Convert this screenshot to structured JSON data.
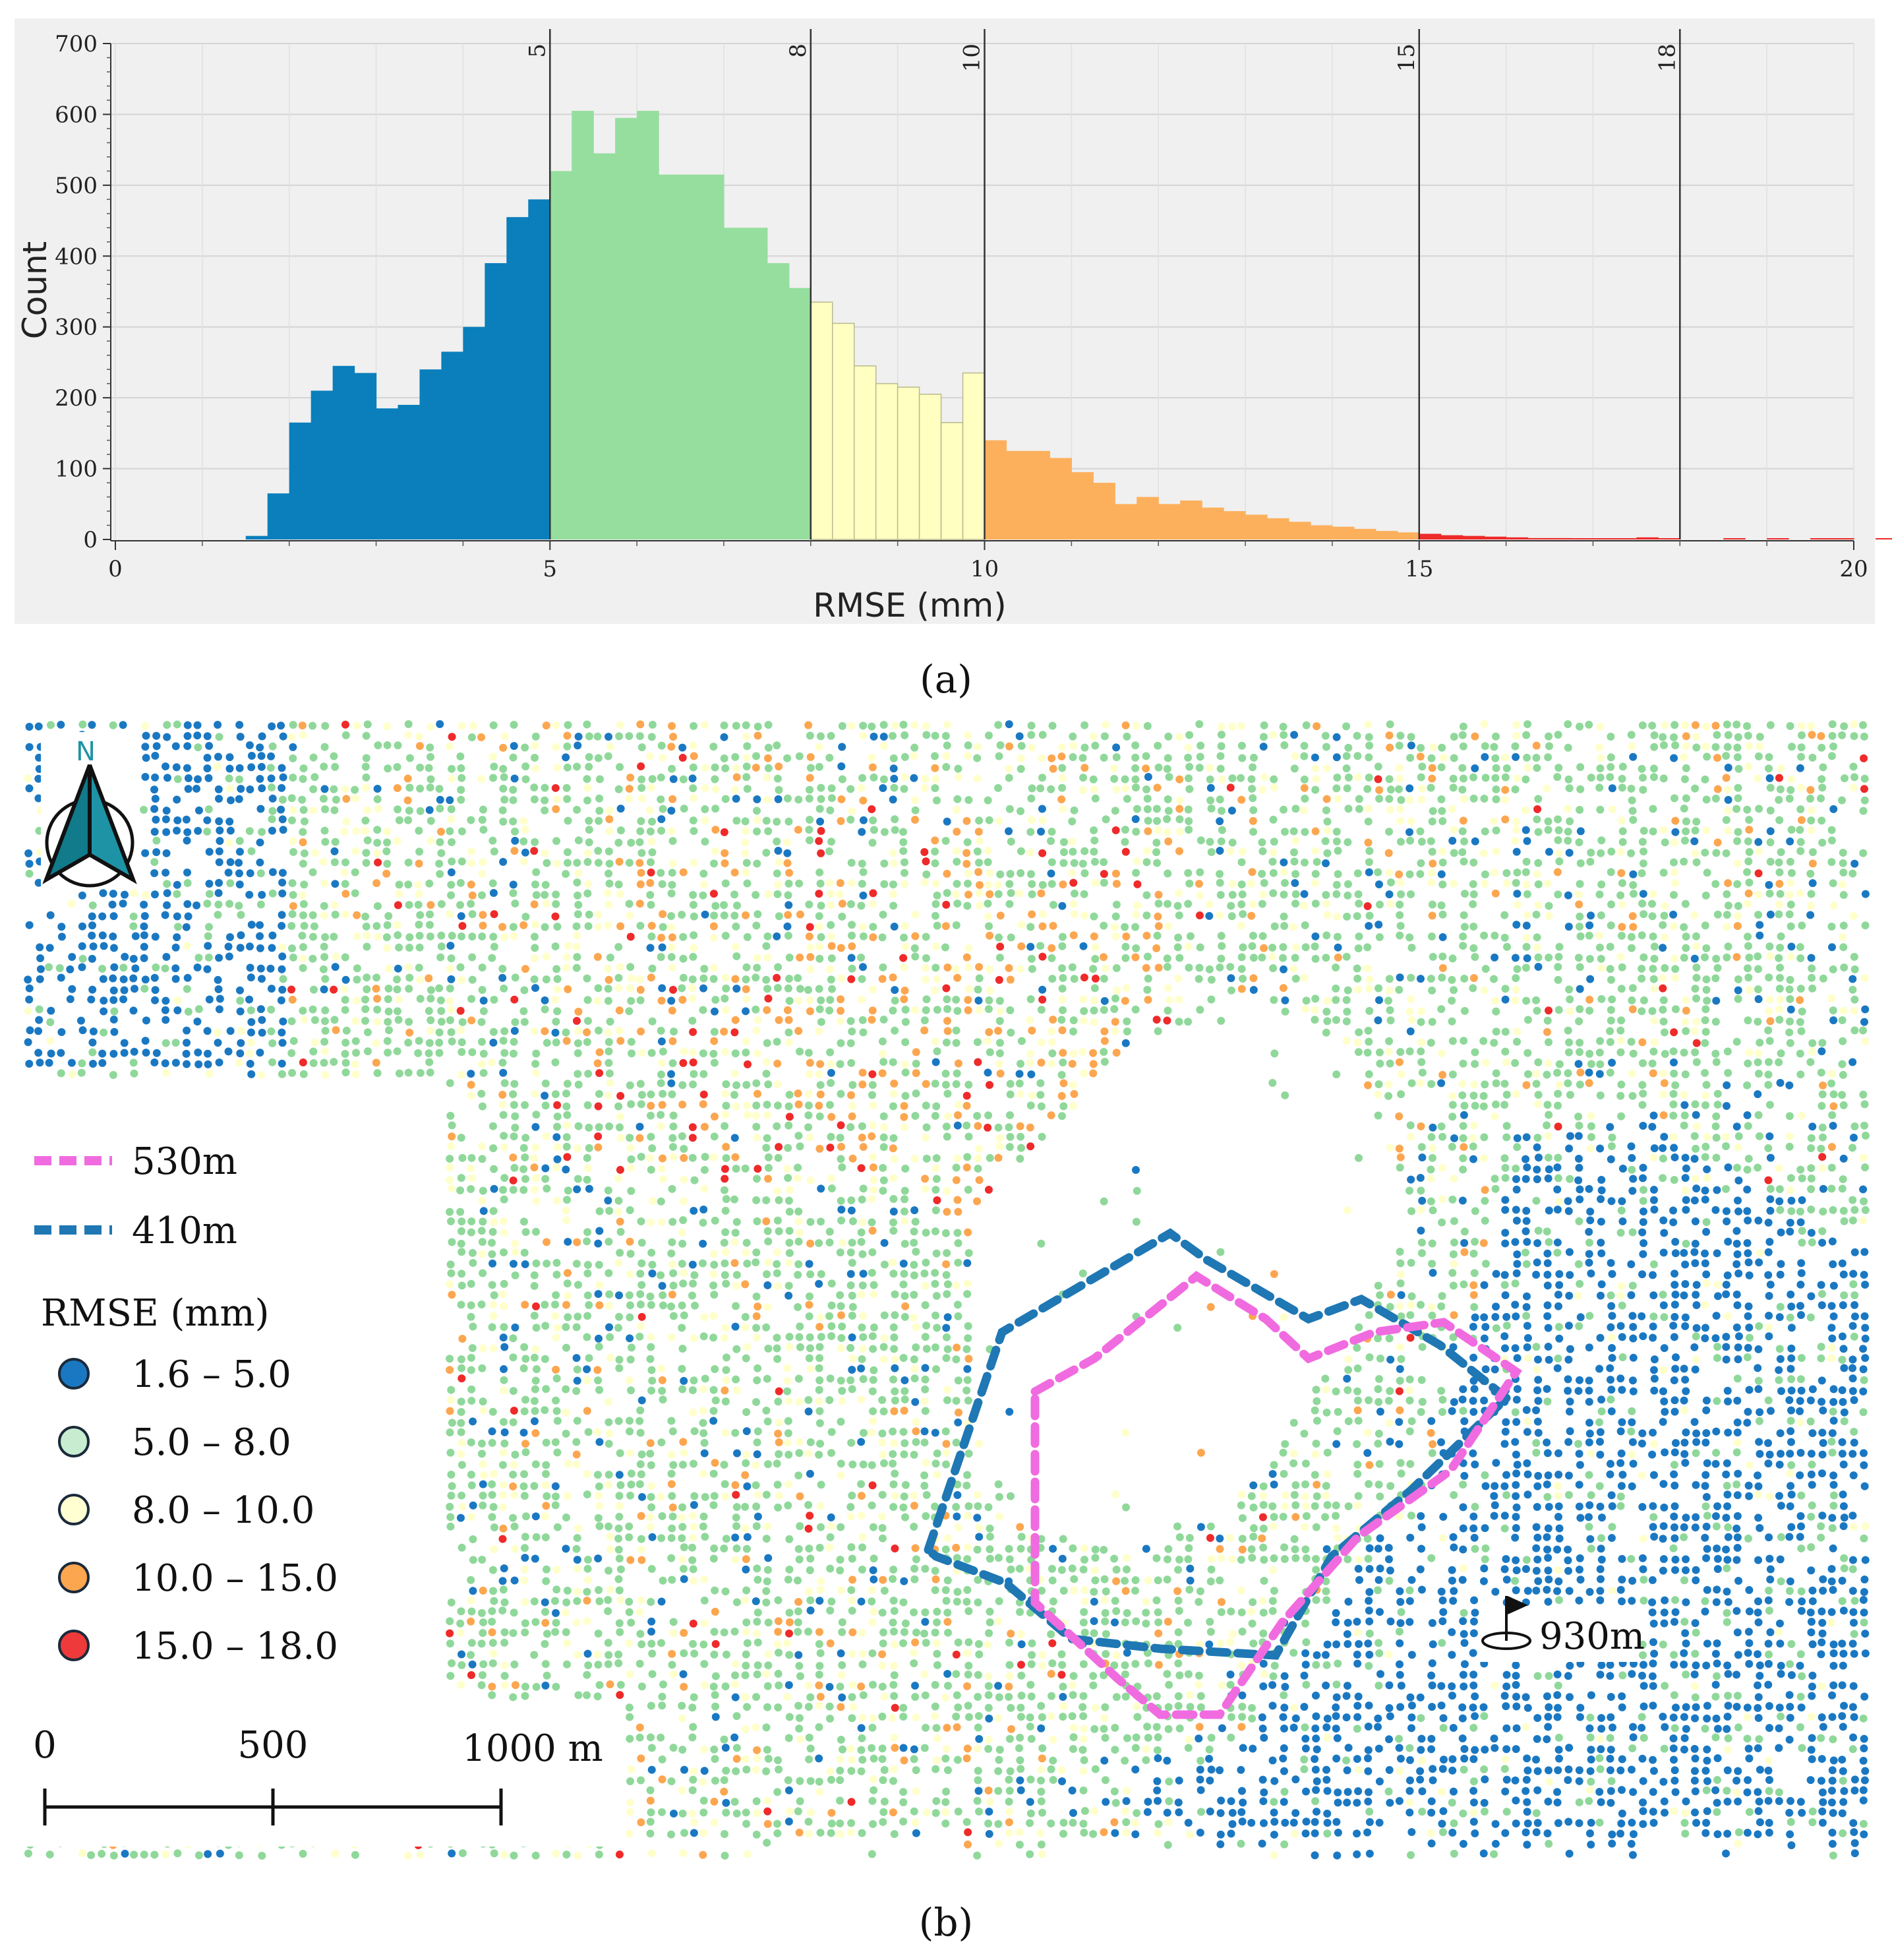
{
  "panel_a": {
    "caption": "(a)",
    "chart_data": {
      "type": "bar",
      "title": "",
      "xlabel": "RMSE (mm)",
      "ylabel": "Count",
      "xlim": [
        0,
        20
      ],
      "ylim": [
        0,
        700
      ],
      "xticks": [
        "0",
        "5",
        "10",
        "15",
        "20"
      ],
      "yticks": [
        "0",
        "100",
        "200",
        "300",
        "400",
        "500",
        "600",
        "700"
      ],
      "bin_width": 0.25,
      "bin_start": 1.5,
      "counts": [
        5,
        65,
        165,
        210,
        245,
        235,
        185,
        190,
        240,
        265,
        300,
        390,
        455,
        480,
        520,
        605,
        545,
        595,
        605,
        515,
        515,
        515,
        440,
        440,
        390,
        355,
        335,
        305,
        245,
        220,
        215,
        205,
        165,
        235,
        140,
        125,
        125,
        115,
        95,
        80,
        50,
        60,
        50,
        55,
        45,
        40,
        35,
        30,
        25,
        20,
        18,
        15,
        12,
        10,
        8,
        6,
        5,
        4,
        3,
        2,
        2,
        1,
        1,
        1,
        3,
        1,
        0,
        0,
        1,
        0,
        1,
        0,
        1,
        1,
        0,
        1
      ],
      "threshold_lines": [
        "5",
        "8",
        "10",
        "15",
        "18"
      ],
      "classes": [
        {
          "range": [
            1.5,
            5.0
          ],
          "color": "#0a7fbc"
        },
        {
          "range": [
            5.0,
            8.0
          ],
          "color": "#96de9e"
        },
        {
          "range": [
            8.0,
            10.0
          ],
          "color": "#ffffc2"
        },
        {
          "range": [
            10.0,
            15.0
          ],
          "color": "#fdb05c"
        },
        {
          "range": [
            15.0,
            18.0
          ],
          "color": "#ee2a2a"
        }
      ],
      "grid": true
    }
  },
  "panel_b": {
    "caption": "(b)",
    "north_label": "N",
    "contours": [
      {
        "label": "530m",
        "color": "#f06be0"
      },
      {
        "label": "410m",
        "color": "#1f77b4"
      }
    ],
    "legend_title": "RMSE (mm)",
    "legend_items": [
      {
        "label": "1.6 – 5.0",
        "color": "#1a78c2"
      },
      {
        "label": "5.0 – 8.0",
        "color": "#c8ecd0"
      },
      {
        "label": "8.0 – 10.0",
        "color": "#ffffd2"
      },
      {
        "label": "10.0 – 15.0",
        "color": "#fca650"
      },
      {
        "label": "15.0 – 18.0",
        "color": "#ee3a3a"
      }
    ],
    "peak_label": "930m",
    "scale_bar": {
      "labels": [
        "0",
        "500",
        "1000 m"
      ]
    }
  }
}
